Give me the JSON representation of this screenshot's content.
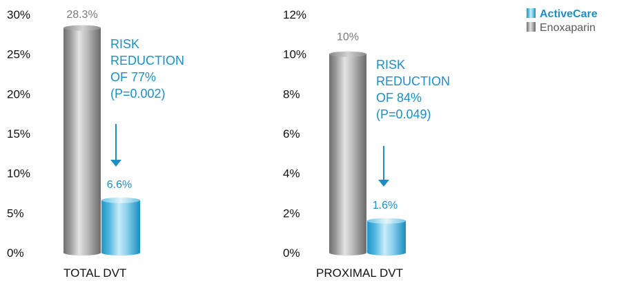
{
  "legend": [
    {
      "label": "ActiveCare",
      "color": "#1AA0D0",
      "bold": true
    },
    {
      "label": "Enoxaparin",
      "color": "#8C8C8C",
      "bold": false
    }
  ],
  "colors": {
    "active_text": "#1B8FC4",
    "enox_text": "#7A7A7A",
    "axis_text": "#111111",
    "arrow": "#1B8FC4"
  },
  "chart_data": [
    {
      "type": "bar",
      "xlabel": "TOTAL DVT",
      "ylim": [
        0,
        30
      ],
      "yticks": [
        "0%",
        "5%",
        "10%",
        "15%",
        "20%",
        "25%",
        "30%"
      ],
      "series": [
        {
          "name": "Enoxaparin",
          "values": [
            28.3
          ],
          "label": "28.3%"
        },
        {
          "name": "ActiveCare",
          "values": [
            6.6
          ],
          "label": "6.6%"
        }
      ],
      "annotation": [
        "RISK",
        "REDUCTION",
        "OF 77%",
        "(P=0.002)"
      ]
    },
    {
      "type": "bar",
      "xlabel": "PROXIMAL DVT",
      "ylim": [
        0,
        12
      ],
      "yticks": [
        "0%",
        "2%",
        "4%",
        "6%",
        "8%",
        "10%",
        "12%"
      ],
      "series": [
        {
          "name": "Enoxaparin",
          "values": [
            10
          ],
          "label": "10%"
        },
        {
          "name": "ActiveCare",
          "values": [
            1.6
          ],
          "label": "1.6%"
        }
      ],
      "annotation": [
        "RISK",
        "REDUCTION",
        "OF 84%",
        "(P=0.049)"
      ]
    }
  ]
}
